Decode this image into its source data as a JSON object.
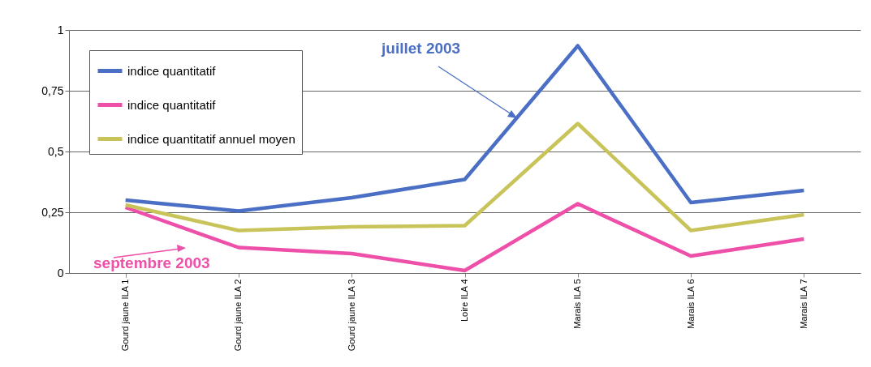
{
  "chart_data": {
    "type": "line",
    "categories": [
      "Gourd jaune ILA 1",
      "Gourd jaune ILA 2",
      "Gourd jaune ILA 3",
      "Loire ILA 4",
      "Marais ILA 5",
      "Marais ILA 6",
      "Marais ILA 7"
    ],
    "series": [
      {
        "name": "indice quantitatif",
        "color": "#4a6fc4",
        "values": [
          0.3,
          0.255,
          0.31,
          0.385,
          0.935,
          0.29,
          0.34
        ]
      },
      {
        "name": "indice quantitatif",
        "color": "#ee4fa8",
        "values": [
          0.27,
          0.105,
          0.08,
          0.01,
          0.285,
          0.07,
          0.14
        ]
      },
      {
        "name": "indice quantitatif annuel moyen",
        "color": "#c8c45a",
        "values": [
          0.28,
          0.175,
          0.19,
          0.195,
          0.615,
          0.175,
          0.24
        ]
      }
    ],
    "annotations": [
      "juillet 2003",
      "septembre 2003"
    ],
    "ylim": [
      0,
      1
    ],
    "yticks": [
      0,
      {
        "value": 0.25,
        "label": "0,25"
      },
      {
        "value": 0.5,
        "label": "0,5"
      },
      {
        "value": 0.75,
        "label": "0,75"
      },
      1
    ],
    "grid": "y",
    "legend": "top left",
    "marker": "none",
    "line_style": "solid"
  }
}
